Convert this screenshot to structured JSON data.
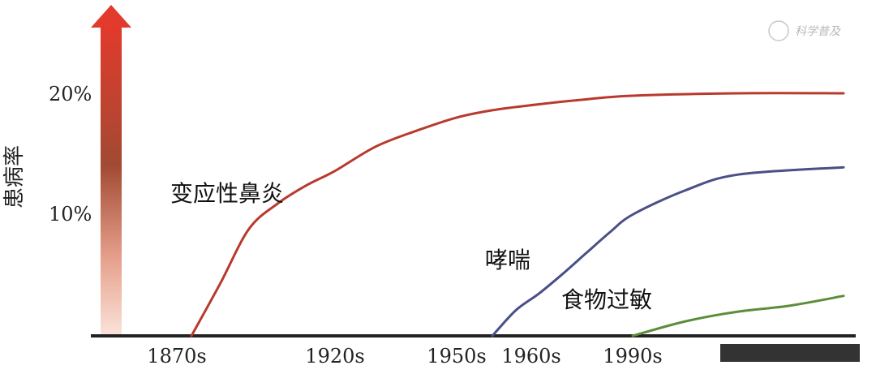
{
  "watermark": "科学普及",
  "chart_data": {
    "type": "line",
    "ylabel": "患病率",
    "yticks": [
      {
        "label": "20%",
        "value": 20
      },
      {
        "label": "10%",
        "value": 10
      }
    ],
    "ylim": [
      0,
      20
    ],
    "x_tick_labels": [
      "1870s",
      "1920s",
      "1950s",
      "1960s",
      "1990s"
    ],
    "series": [
      {
        "name": "变应性鼻炎",
        "color": "#b83a2e",
        "points": [
          [
            1870,
            0
          ],
          [
            1880,
            4.3
          ],
          [
            1890,
            8.8
          ],
          [
            1900,
            10.9
          ],
          [
            1910,
            12.4
          ],
          [
            1920,
            13.6
          ],
          [
            1930,
            15.6
          ],
          [
            1940,
            16.9
          ],
          [
            1950,
            18.0
          ],
          [
            1960,
            18.6
          ],
          [
            1970,
            19.1
          ],
          [
            1980,
            19.5
          ],
          [
            1990,
            19.8
          ],
          [
            2000,
            20.0
          ],
          [
            2010,
            20.0
          ]
        ]
      },
      {
        "name": "哮喘",
        "color": "#4a4f86",
        "points": [
          [
            1960,
            0
          ],
          [
            1965,
            2.1
          ],
          [
            1970,
            3.5
          ],
          [
            1975,
            5.1
          ],
          [
            1980,
            6.8
          ],
          [
            1985,
            8.5
          ],
          [
            1990,
            10.0
          ],
          [
            1995,
            12.0
          ],
          [
            2000,
            13.3
          ],
          [
            2010,
            13.9
          ]
        ]
      },
      {
        "name": "食物过敏",
        "color": "#5b8d3a",
        "points": [
          [
            1990,
            0
          ],
          [
            1995,
            1.2
          ],
          [
            2000,
            2.0
          ],
          [
            2005,
            2.5
          ],
          [
            2010,
            3.3
          ]
        ]
      }
    ]
  }
}
